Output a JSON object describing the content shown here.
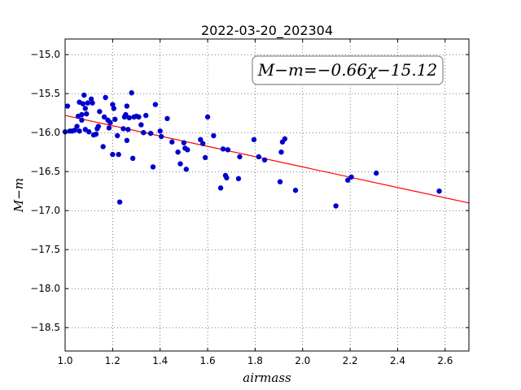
{
  "chart_data": {
    "type": "scatter",
    "title": "2022-03-20_202304",
    "xlabel": "airmass",
    "ylabel": "M−m",
    "xlim": [
      1.0,
      2.7
    ],
    "ylim": [
      -18.8,
      -14.8
    ],
    "xticks": [
      1.0,
      1.2,
      1.4,
      1.6,
      1.8,
      2.0,
      2.2,
      2.4,
      2.6
    ],
    "xtick_labels": [
      "1.0",
      "1.2",
      "1.4",
      "1.6",
      "1.8",
      "2.0",
      "2.2",
      "2.4",
      "2.6"
    ],
    "yticks": [
      -15.0,
      -15.5,
      -16.0,
      -16.5,
      -17.0,
      -17.5,
      -18.0,
      -18.5
    ],
    "ytick_labels": [
      "−15.0",
      "−15.5",
      "−16.0",
      "−16.5",
      "−17.0",
      "−17.5",
      "−18.0",
      "−18.5"
    ],
    "grid": true,
    "annotation": "M−m=−0.66χ−15.12",
    "fit": {
      "slope": -0.66,
      "intercept": -15.12,
      "color": "#ff0000"
    },
    "point_color": "#0000cc",
    "points": [
      [
        1.0,
        -15.99
      ],
      [
        1.01,
        -15.66
      ],
      [
        1.02,
        -15.98
      ],
      [
        1.03,
        -15.98
      ],
      [
        1.04,
        -15.97
      ],
      [
        1.05,
        -15.92
      ],
      [
        1.055,
        -15.79
      ],
      [
        1.06,
        -15.61
      ],
      [
        1.06,
        -15.98
      ],
      [
        1.07,
        -15.84
      ],
      [
        1.07,
        -15.77
      ],
      [
        1.075,
        -15.63
      ],
      [
        1.08,
        -15.52
      ],
      [
        1.085,
        -15.69
      ],
      [
        1.085,
        -15.96
      ],
      [
        1.09,
        -15.76
      ],
      [
        1.095,
        -15.62
      ],
      [
        1.1,
        -15.99
      ],
      [
        1.11,
        -15.57
      ],
      [
        1.115,
        -15.62
      ],
      [
        1.12,
        -16.03
      ],
      [
        1.13,
        -16.02
      ],
      [
        1.135,
        -15.95
      ],
      [
        1.14,
        -15.92
      ],
      [
        1.145,
        -15.73
      ],
      [
        1.16,
        -16.18
      ],
      [
        1.165,
        -15.8
      ],
      [
        1.17,
        -15.55
      ],
      [
        1.18,
        -15.84
      ],
      [
        1.185,
        -15.94
      ],
      [
        1.19,
        -15.87
      ],
      [
        1.2,
        -15.64
      ],
      [
        1.2,
        -16.28
      ],
      [
        1.205,
        -15.69
      ],
      [
        1.21,
        -15.83
      ],
      [
        1.22,
        -16.04
      ],
      [
        1.225,
        -16.28
      ],
      [
        1.23,
        -16.89
      ],
      [
        1.245,
        -15.95
      ],
      [
        1.25,
        -15.8
      ],
      [
        1.255,
        -15.77
      ],
      [
        1.26,
        -16.1
      ],
      [
        1.26,
        -15.66
      ],
      [
        1.265,
        -15.96
      ],
      [
        1.27,
        -15.81
      ],
      [
        1.28,
        -15.49
      ],
      [
        1.285,
        -16.33
      ],
      [
        1.29,
        -15.8
      ],
      [
        1.3,
        -15.79
      ],
      [
        1.31,
        -15.8
      ],
      [
        1.32,
        -15.9
      ],
      [
        1.33,
        -16.0
      ],
      [
        1.34,
        -15.78
      ],
      [
        1.36,
        -16.01
      ],
      [
        1.37,
        -16.44
      ],
      [
        1.38,
        -15.64
      ],
      [
        1.4,
        -15.98
      ],
      [
        1.405,
        -16.05
      ],
      [
        1.43,
        -15.82
      ],
      [
        1.45,
        -16.12
      ],
      [
        1.475,
        -16.25
      ],
      [
        1.485,
        -16.4
      ],
      [
        1.5,
        -16.13
      ],
      [
        1.505,
        -16.2
      ],
      [
        1.51,
        -16.47
      ],
      [
        1.515,
        -16.22
      ],
      [
        1.57,
        -16.09
      ],
      [
        1.58,
        -16.14
      ],
      [
        1.59,
        -16.32
      ],
      [
        1.6,
        -15.8
      ],
      [
        1.625,
        -16.04
      ],
      [
        1.655,
        -16.71
      ],
      [
        1.665,
        -16.21
      ],
      [
        1.675,
        -16.55
      ],
      [
        1.68,
        -16.58
      ],
      [
        1.685,
        -16.22
      ],
      [
        1.73,
        -16.59
      ],
      [
        1.735,
        -16.31
      ],
      [
        1.795,
        -16.09
      ],
      [
        1.815,
        -16.31
      ],
      [
        1.84,
        -16.35
      ],
      [
        1.905,
        -16.63
      ],
      [
        1.91,
        -16.25
      ],
      [
        1.915,
        -16.12
      ],
      [
        1.925,
        -16.08
      ],
      [
        1.97,
        -16.74
      ],
      [
        2.14,
        -16.94
      ],
      [
        2.19,
        -16.61
      ],
      [
        2.205,
        -16.57
      ],
      [
        2.31,
        -16.52
      ],
      [
        2.575,
        -16.75
      ]
    ]
  }
}
